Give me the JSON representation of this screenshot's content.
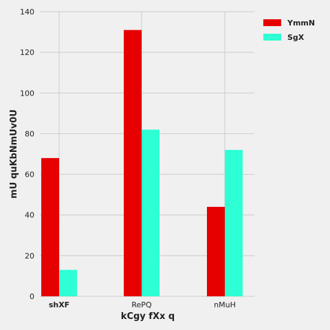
{
  "chart_data": {
    "type": "bar",
    "categories": [
      "shXF",
      "RePQ",
      "nMuH"
    ],
    "series": [
      {
        "name": "YmmN",
        "values": [
          68,
          131,
          44
        ],
        "color": "#e60000"
      },
      {
        "name": "SgX",
        "values": [
          13,
          82,
          72
        ],
        "color": "#2effd5"
      }
    ],
    "xlabel": "kCgy fXx q",
    "ylabel": "mU quKbNmUv0U",
    "ylim": [
      0,
      140
    ],
    "yticks": [
      0,
      20,
      40,
      60,
      80,
      100,
      120,
      140
    ],
    "grid": true,
    "legend_position": "top-right"
  },
  "colors": {
    "background": "#f0f0f0",
    "grid": "#cbcbcb",
    "text": "#222222"
  }
}
